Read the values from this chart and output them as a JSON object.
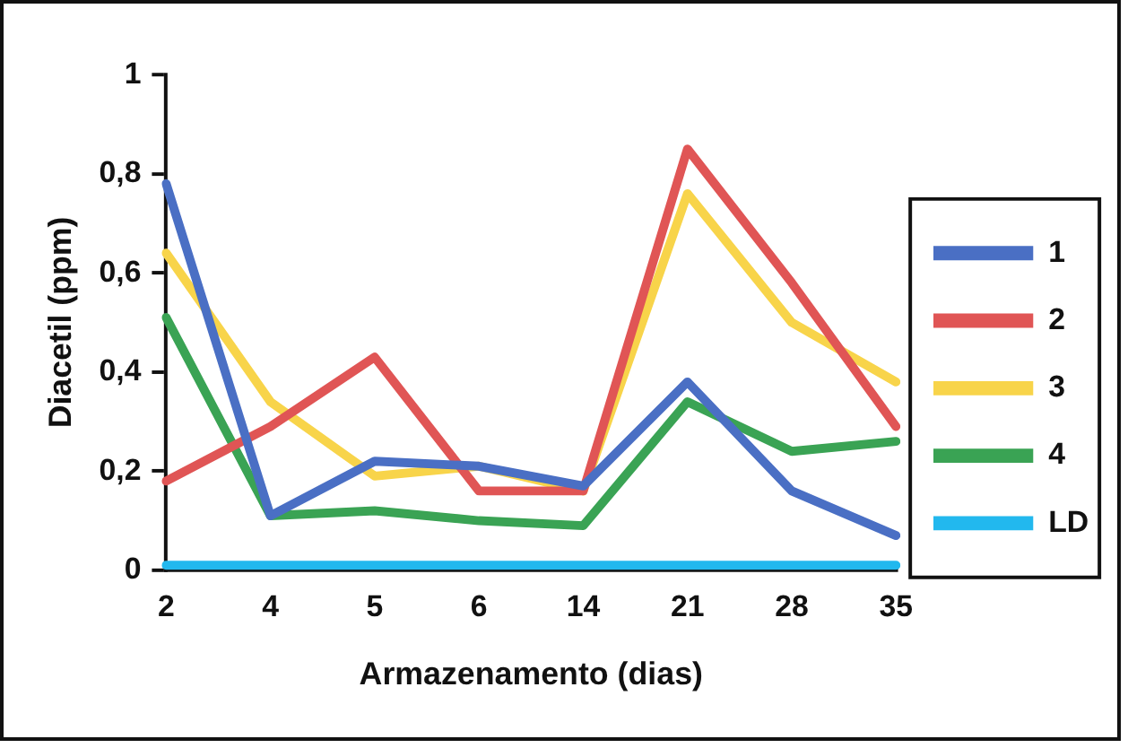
{
  "chart_data": {
    "type": "line",
    "xlabel": "Armazenamento (dias)",
    "ylabel": "Diacetil (ppm)",
    "categories": [
      "2",
      "4",
      "5",
      "6",
      "14",
      "21",
      "28",
      "35"
    ],
    "ylim": [
      0,
      1
    ],
    "yticks": [
      {
        "value": 0,
        "label": "0"
      },
      {
        "value": 0.2,
        "label": "0,2"
      },
      {
        "value": 0.4,
        "label": "0,4"
      },
      {
        "value": 0.6,
        "label": "0,6"
      },
      {
        "value": 0.8,
        "label": "0,8"
      },
      {
        "value": 1,
        "label": "1"
      }
    ],
    "grid": false,
    "legend": "right",
    "marker": "none",
    "line_style": "solid",
    "series": [
      {
        "name": "1",
        "color": "#4a6fc4",
        "values": [
          0.78,
          0.11,
          0.22,
          0.21,
          0.17,
          0.38,
          0.16,
          0.07
        ]
      },
      {
        "name": "2",
        "color": "#e05555",
        "values": [
          0.18,
          0.29,
          0.43,
          0.16,
          0.16,
          0.85,
          0.58,
          0.29
        ]
      },
      {
        "name": "3",
        "color": "#f8d44a",
        "values": [
          0.64,
          0.34,
          0.19,
          0.21,
          0.16,
          0.76,
          0.5,
          0.38
        ]
      },
      {
        "name": "4",
        "color": "#3aa354",
        "values": [
          0.51,
          0.11,
          0.12,
          0.1,
          0.09,
          0.34,
          0.24,
          0.26
        ]
      },
      {
        "name": "LD",
        "color": "#22b8ee",
        "values": [
          0.01,
          0.01,
          0.01,
          0.01,
          0.01,
          0.01,
          0.01,
          0.01
        ]
      }
    ]
  }
}
